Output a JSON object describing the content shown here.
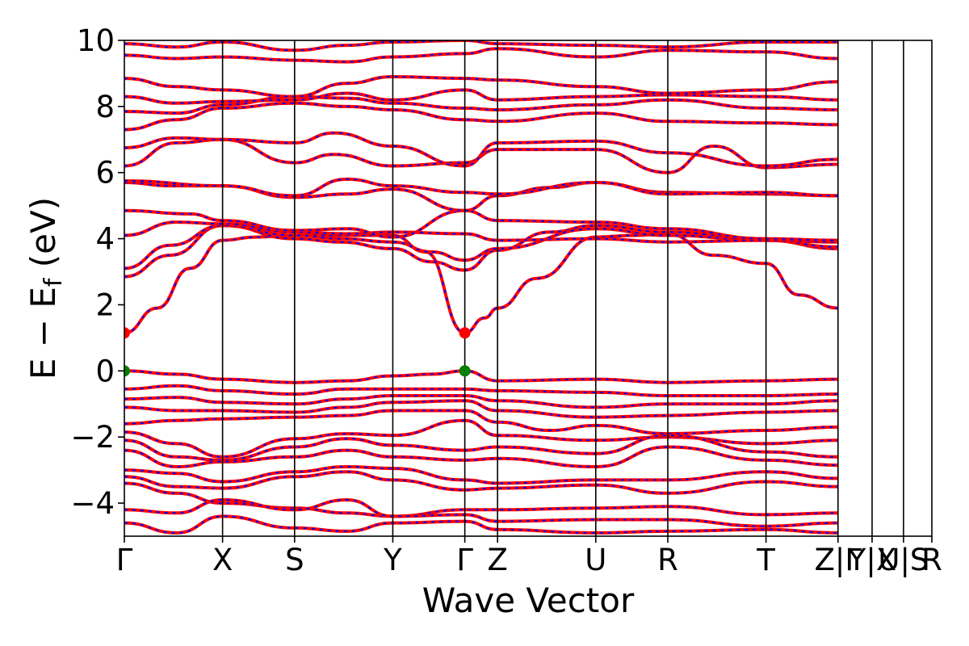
{
  "chart_data": {
    "type": "line",
    "title": "",
    "xlabel": "Wave Vector",
    "ylabel": "E − E_f (eV)",
    "ylabel_main": "E − E",
    "ylabel_sub": "f",
    "ylabel_unit": " (eV)",
    "ylim": [
      -5,
      10
    ],
    "yticks": [
      10,
      8,
      6,
      4,
      2,
      0,
      -2,
      -4
    ],
    "ytick_labels": [
      "10",
      "8",
      "6",
      "4",
      "2",
      "0",
      "−2",
      "−4"
    ],
    "xlim": [
      0,
      12.333
    ],
    "kpoints": [
      {
        "label": "Γ",
        "x": 0
      },
      {
        "label": "X",
        "x": 1.5
      },
      {
        "label": "S",
        "x": 2.6
      },
      {
        "label": "Y",
        "x": 4.1
      },
      {
        "label": "Γ",
        "x": 5.2
      },
      {
        "label": "Z",
        "x": 5.7
      },
      {
        "label": "U",
        "x": 7.2
      },
      {
        "label": "R",
        "x": 8.3
      },
      {
        "label": "T",
        "x": 9.8
      },
      {
        "label": "Z|Γ",
        "x": 10.9
      },
      {
        "label": "Y|X",
        "x": 11.42
      },
      {
        "label": "U|S",
        "x": 11.9
      },
      {
        "label": "R",
        "x": 12.333
      }
    ],
    "band_edges": {
      "cbm": {
        "energy": 1.15,
        "x": [
          0,
          5.2
        ],
        "color": "#ff0000"
      },
      "vbm": {
        "energy": 0.0,
        "x": [
          0,
          5.2
        ],
        "color": "#008000"
      }
    },
    "series": [
      {
        "values_x": [
          0,
          0.5,
          1.0,
          1.5,
          2.0,
          2.6,
          3.2,
          4.1,
          4.6,
          5.2,
          5.5,
          5.7,
          6.3,
          7.2,
          7.8,
          8.3,
          9.0,
          9.8,
          10.3,
          10.9
        ],
        "values": [
          1.15,
          1.9,
          3.1,
          3.95,
          4.05,
          4.1,
          4.1,
          4.1,
          3.6,
          1.15,
          1.6,
          1.9,
          2.8,
          4.05,
          4.1,
          4.15,
          3.5,
          3.25,
          2.3,
          1.9
        ]
      },
      {
        "values_x": [
          0,
          0.7,
          1.5,
          2.6,
          3.3,
          4.1,
          4.7,
          5.2,
          5.7,
          6.5,
          7.2,
          8.3,
          9.8,
          10.9
        ],
        "values": [
          2.85,
          3.5,
          4.4,
          4.0,
          3.9,
          3.7,
          3.3,
          3.05,
          3.65,
          4.2,
          4.4,
          4.2,
          3.95,
          3.7
        ]
      },
      {
        "values_x": [
          0,
          0.7,
          1.5,
          2.6,
          3.3,
          4.1,
          4.7,
          5.2,
          5.7,
          7.2,
          8.3,
          9.8,
          10.9
        ],
        "values": [
          3.1,
          3.8,
          4.4,
          4.1,
          4.0,
          3.9,
          3.6,
          3.35,
          3.7,
          4.3,
          4.1,
          3.95,
          3.75
        ]
      },
      {
        "values_x": [
          0,
          0.8,
          1.5,
          2.6,
          3.4,
          4.1,
          5.2,
          5.7,
          7.2,
          8.3,
          9.8,
          10.9
        ],
        "values": [
          4.1,
          4.5,
          4.45,
          4.2,
          4.15,
          4.2,
          4.15,
          3.95,
          4.0,
          3.9,
          3.95,
          3.9
        ]
      },
      {
        "values_x": [
          0,
          1.0,
          1.5,
          2.6,
          3.4,
          4.1,
          5.2,
          5.7,
          7.2,
          8.3,
          9.8,
          10.9
        ],
        "values": [
          4.85,
          4.75,
          4.55,
          4.25,
          4.3,
          4.05,
          4.85,
          4.55,
          4.5,
          4.3,
          4.0,
          3.95
        ]
      },
      {
        "values_x": [
          0,
          0.7,
          1.5,
          2.6,
          3.4,
          4.1,
          5.2,
          5.7,
          6.5,
          7.2,
          8.3,
          9.8,
          10.9
        ],
        "values": [
          5.7,
          5.6,
          5.6,
          5.25,
          5.35,
          5.5,
          4.85,
          5.3,
          5.55,
          5.7,
          5.4,
          5.35,
          5.3
        ]
      },
      {
        "values_x": [
          0,
          1.5,
          2.6,
          3.4,
          4.1,
          5.2,
          5.7,
          7.2,
          8.3,
          9.8,
          10.9
        ],
        "values": [
          5.75,
          5.6,
          5.3,
          5.8,
          5.6,
          5.4,
          5.35,
          5.7,
          5.35,
          5.4,
          5.3
        ]
      },
      {
        "values_x": [
          0,
          0.8,
          1.5,
          2.6,
          3.2,
          4.1,
          5.2,
          5.7,
          7.2,
          8.3,
          9.0,
          9.8,
          10.9
        ],
        "values": [
          6.2,
          6.9,
          7.0,
          6.3,
          6.55,
          6.2,
          6.3,
          6.7,
          6.7,
          6.0,
          6.8,
          6.15,
          6.25
        ]
      },
      {
        "values_x": [
          0,
          0.8,
          1.5,
          2.6,
          3.2,
          4.1,
          5.2,
          5.7,
          7.2,
          8.3,
          9.8,
          10.9
        ],
        "values": [
          6.75,
          7.05,
          7.0,
          6.9,
          7.2,
          6.8,
          6.2,
          6.9,
          6.95,
          6.6,
          6.2,
          6.4
        ]
      },
      {
        "values_x": [
          0,
          0.8,
          1.5,
          2.6,
          3.4,
          4.1,
          5.2,
          5.7,
          7.2,
          8.3,
          9.8,
          10.9
        ],
        "values": [
          7.3,
          7.6,
          7.95,
          8.1,
          8.0,
          7.9,
          7.6,
          7.55,
          7.8,
          7.55,
          7.5,
          7.45
        ]
      },
      {
        "values_x": [
          0,
          0.8,
          1.5,
          2.6,
          3.4,
          4.1,
          5.2,
          5.7,
          7.2,
          8.3,
          9.8,
          10.9
        ],
        "values": [
          7.85,
          7.8,
          8.05,
          8.3,
          8.25,
          8.1,
          7.95,
          7.9,
          8.05,
          8.2,
          7.95,
          7.9
        ]
      },
      {
        "values_x": [
          0,
          0.8,
          1.5,
          2.6,
          3.4,
          4.1,
          5.2,
          5.7,
          7.2,
          8.3,
          9.8,
          10.9
        ],
        "values": [
          8.3,
          8.1,
          8.15,
          8.2,
          8.4,
          8.2,
          8.5,
          8.2,
          8.3,
          8.35,
          8.3,
          8.2
        ]
      },
      {
        "values_x": [
          0,
          0.8,
          1.5,
          2.6,
          3.4,
          4.1,
          5.2,
          5.7,
          7.2,
          8.3,
          9.8,
          10.9
        ],
        "values": [
          8.85,
          8.6,
          8.5,
          8.3,
          8.7,
          8.9,
          8.85,
          8.8,
          8.6,
          8.4,
          8.5,
          8.75
        ]
      },
      {
        "values_x": [
          0,
          0.8,
          1.5,
          2.6,
          3.4,
          4.1,
          5.2,
          5.7,
          7.2,
          8.3,
          9.8,
          10.9
        ],
        "values": [
          9.55,
          9.45,
          9.5,
          9.4,
          9.35,
          9.5,
          9.6,
          9.75,
          9.5,
          9.7,
          9.65,
          9.45
        ]
      },
      {
        "values_x": [
          0,
          0.8,
          1.5,
          2.6,
          3.4,
          4.1,
          5.2,
          5.7,
          7.2,
          8.3,
          9.8,
          10.9
        ],
        "values": [
          9.9,
          9.8,
          9.95,
          9.7,
          9.85,
          9.95,
          10.0,
          9.9,
          9.85,
          9.8,
          9.95,
          9.95
        ]
      },
      {
        "values_x": [
          0,
          0.8,
          1.5,
          2.6,
          3.4,
          4.1,
          4.7,
          5.2,
          5.7,
          7.2,
          8.3,
          9.8,
          10.9
        ],
        "values": [
          0.0,
          -0.1,
          -0.25,
          -0.35,
          -0.3,
          -0.15,
          -0.1,
          0.0,
          -0.3,
          -0.25,
          -0.35,
          -0.3,
          -0.25
        ]
      },
      {
        "values_x": [
          0,
          0.8,
          1.5,
          2.6,
          3.4,
          4.1,
          5.2,
          5.7,
          7.2,
          8.3,
          9.8,
          10.9
        ],
        "values": [
          -0.55,
          -0.45,
          -0.6,
          -0.7,
          -0.55,
          -0.55,
          -0.55,
          -0.6,
          -0.65,
          -0.75,
          -0.75,
          -0.7
        ]
      },
      {
        "values_x": [
          0,
          0.8,
          1.5,
          2.6,
          3.4,
          4.1,
          5.2,
          5.7,
          7.2,
          8.3,
          9.8,
          10.9
        ],
        "values": [
          -0.85,
          -0.8,
          -0.95,
          -1.0,
          -0.85,
          -0.75,
          -0.75,
          -0.9,
          -1.1,
          -1.0,
          -1.0,
          -0.9
        ]
      },
      {
        "values_x": [
          0,
          0.8,
          1.5,
          2.6,
          3.4,
          4.1,
          5.2,
          5.7,
          7.2,
          8.3,
          9.8,
          10.9
        ],
        "values": [
          -1.1,
          -1.2,
          -1.2,
          -1.25,
          -1.1,
          -0.95,
          -0.9,
          -1.2,
          -1.4,
          -1.35,
          -1.25,
          -1.2
        ]
      },
      {
        "values_x": [
          0,
          0.8,
          1.5,
          2.6,
          3.4,
          4.1,
          5.2,
          5.7,
          6.5,
          7.2,
          8.3,
          9.8,
          10.9
        ],
        "values": [
          -1.6,
          -1.5,
          -1.45,
          -1.4,
          -1.35,
          -1.2,
          -1.2,
          -1.55,
          -1.8,
          -1.65,
          -1.9,
          -1.8,
          -1.7
        ]
      },
      {
        "values_x": [
          0,
          0.8,
          1.5,
          2.6,
          3.4,
          4.1,
          5.2,
          5.7,
          7.2,
          8.3,
          9.8,
          10.9
        ],
        "values": [
          -1.85,
          -2.2,
          -2.6,
          -2.05,
          -1.9,
          -1.95,
          -1.5,
          -1.95,
          -2.1,
          -2.0,
          -2.2,
          -2.1
        ]
      },
      {
        "values_x": [
          0,
          0.8,
          1.5,
          2.6,
          3.4,
          4.1,
          5.2,
          5.7,
          7.2,
          8.3,
          9.8,
          10.9
        ],
        "values": [
          -2.1,
          -2.6,
          -2.7,
          -2.3,
          -2.05,
          -2.25,
          -2.4,
          -2.3,
          -2.5,
          -1.95,
          -2.45,
          -2.6
        ]
      },
      {
        "values_x": [
          0,
          0.8,
          1.5,
          2.6,
          3.4,
          4.1,
          5.2,
          5.7,
          7.2,
          8.3,
          9.8,
          10.9
        ],
        "values": [
          -2.4,
          -2.9,
          -2.75,
          -2.6,
          -2.4,
          -2.6,
          -2.7,
          -2.65,
          -2.9,
          -2.3,
          -2.7,
          -2.85
        ]
      },
      {
        "values_x": [
          0,
          0.8,
          1.5,
          2.6,
          3.4,
          4.1,
          5.2,
          5.7,
          7.2,
          8.3,
          9.8,
          10.9
        ],
        "values": [
          -3.0,
          -3.1,
          -3.35,
          -3.05,
          -2.9,
          -2.95,
          -3.3,
          -3.4,
          -3.3,
          -3.3,
          -3.05,
          -3.25
        ]
      },
      {
        "values_x": [
          0,
          0.8,
          1.5,
          2.6,
          3.4,
          4.1,
          5.2,
          5.7,
          7.2,
          8.3,
          9.8,
          10.9
        ],
        "values": [
          -3.2,
          -3.5,
          -3.55,
          -3.2,
          -3.05,
          -3.3,
          -3.6,
          -3.55,
          -3.45,
          -3.7,
          -3.35,
          -3.5
        ]
      },
      {
        "values_x": [
          0,
          0.8,
          1.5,
          2.6,
          3.4,
          4.1,
          5.2,
          5.7,
          7.2,
          8.3,
          9.8,
          10.9
        ],
        "values": [
          -3.4,
          -3.7,
          -4.0,
          -4.15,
          -4.3,
          -4.4,
          -4.2,
          -4.2,
          -4.15,
          -4.1,
          -4.35,
          -4.3
        ]
      },
      {
        "values_x": [
          0,
          0.8,
          1.5,
          2.6,
          3.4,
          4.1,
          5.2,
          5.7,
          7.2,
          8.3,
          9.8,
          10.9
        ],
        "values": [
          -4.2,
          -4.3,
          -3.9,
          -4.2,
          -3.9,
          -4.4,
          -4.35,
          -4.55,
          -4.5,
          -4.5,
          -4.7,
          -4.6
        ]
      },
      {
        "values_x": [
          0,
          0.8,
          1.5,
          2.6,
          3.4,
          4.1,
          5.2,
          5.7,
          7.2,
          8.3,
          9.8,
          10.9
        ],
        "values": [
          -4.6,
          -4.9,
          -4.4,
          -4.75,
          -4.85,
          -4.6,
          -4.55,
          -4.8,
          -4.9,
          -4.85,
          -4.8,
          -4.9
        ]
      }
    ]
  }
}
